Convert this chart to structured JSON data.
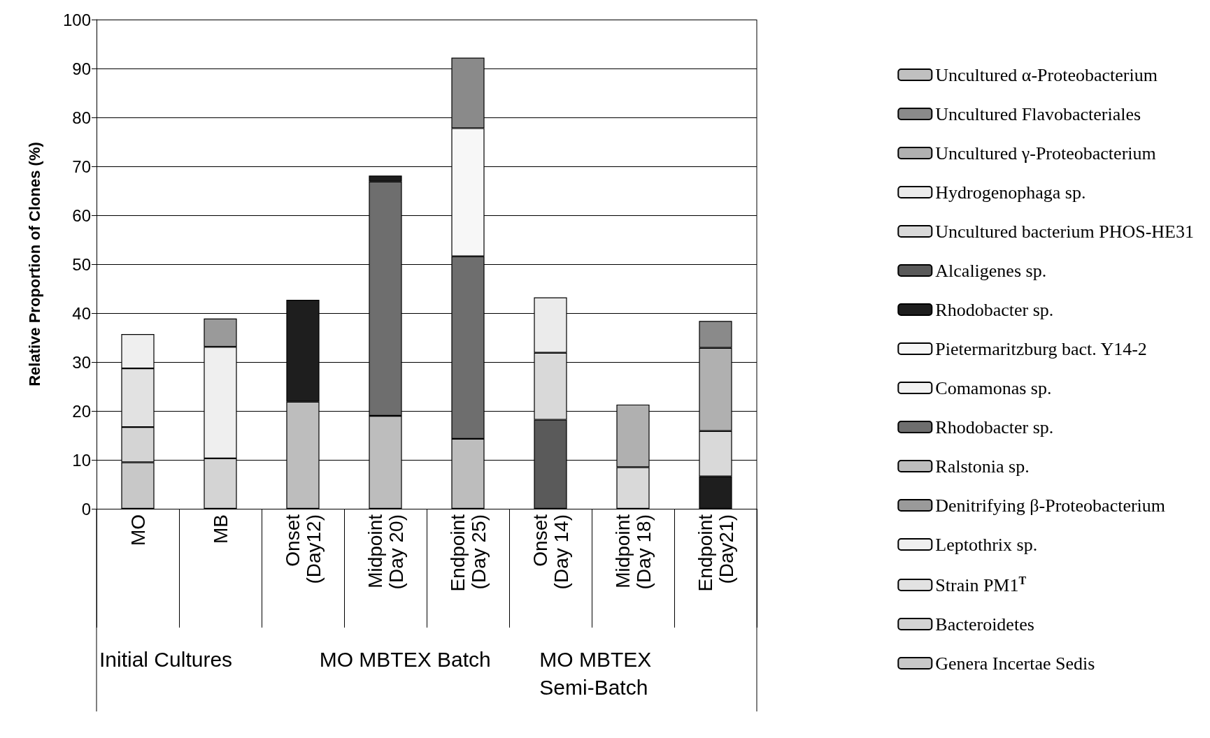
{
  "chart_data": {
    "type": "bar",
    "stacked": true,
    "ylabel": "Relative Proportion of Clones (%)",
    "categories": [
      "MO",
      "MB",
      "Onset (Day12)",
      "Midpoint (Day 20)",
      "Endpoint (Day 25)",
      "Onset (Day 14)",
      "Midpoint (Day 18)",
      "Endpoint (Day21)"
    ],
    "ylim": [
      0,
      100
    ],
    "yticks": [
      0,
      10,
      20,
      30,
      40,
      50,
      60,
      70,
      80,
      90,
      100
    ],
    "grid": "y",
    "legend": "right",
    "annotations": [
      "Initial Cultures",
      "MO MBTEX Batch",
      "MO MBTEX Semi-Batch"
    ],
    "series": [
      {
        "name": "Genera Incertae Sedis",
        "color": "#c8c8c8",
        "values": [
          9.5,
          null,
          null,
          null,
          null,
          null,
          null,
          null
        ]
      },
      {
        "name": "Bacteroidetes",
        "color": "#d4d4d4",
        "values": [
          7.2,
          10.3,
          null,
          null,
          null,
          null,
          null,
          null
        ]
      },
      {
        "name": "Strain PM1$^{T}$",
        "color": "#e2e2e2",
        "values": [
          12.0,
          null,
          null,
          null,
          null,
          null,
          null,
          null
        ]
      },
      {
        "name": "Leptothrix sp.",
        "color": "#efefef",
        "values": [
          7.0,
          22.8,
          null,
          null,
          null,
          null,
          null,
          null
        ]
      },
      {
        "name": "Denitrifying β-Proteobacterium",
        "color": "#9a9a9a",
        "values": [
          null,
          5.8,
          null,
          null,
          null,
          null,
          null,
          null
        ]
      },
      {
        "name": "Ralstonia sp.",
        "color": "#bdbdbd",
        "values": [
          null,
          null,
          21.9,
          19.0,
          14.3,
          null,
          null,
          null
        ]
      },
      {
        "name": "Rhodobacter sp.",
        "color": "#6e6e6e",
        "values": [
          null,
          null,
          null,
          47.9,
          37.3,
          null,
          null,
          null
        ]
      },
      {
        "name": "Comamonas sp.",
        "color": "#f2f2f2",
        "values": [
          null,
          null,
          null,
          null,
          null,
          null,
          null,
          null
        ]
      },
      {
        "name": "Pietermaritzburg bact. Y14-2",
        "color": "#f7f7f7",
        "values": [
          null,
          null,
          null,
          null,
          26.2,
          null,
          null,
          null
        ]
      },
      {
        "name": "Rhodobacter sp.",
        "color": "#1e1e1e",
        "values": [
          null,
          null,
          20.8,
          1.2,
          null,
          null,
          null,
          6.6
        ]
      },
      {
        "name": "Alcaligenes sp.",
        "color": "#5a5a5a",
        "values": [
          null,
          null,
          null,
          null,
          null,
          18.2,
          null,
          null
        ]
      },
      {
        "name": "Uncultured bacterium PHOS-HE31",
        "color": "#d9d9d9",
        "values": [
          null,
          null,
          null,
          null,
          null,
          13.7,
          8.5,
          9.3
        ]
      },
      {
        "name": "Hydrogenophaga sp.",
        "color": "#ebebeb",
        "values": [
          null,
          null,
          null,
          null,
          null,
          11.3,
          null,
          null
        ]
      },
      {
        "name": "Uncultured γ-Proteobacterium",
        "color": "#b0b0b0",
        "values": [
          null,
          null,
          null,
          null,
          null,
          null,
          12.8,
          17.0
        ]
      },
      {
        "name": "Uncultured Flavobacteriales",
        "color": "#8a8a8a",
        "values": [
          null,
          null,
          null,
          null,
          14.4,
          null,
          null,
          5.5
        ]
      },
      {
        "name": "Uncultured α-Proteobacterium",
        "color": "#c0c0c0",
        "values": [
          null,
          null,
          null,
          null,
          null,
          null,
          null,
          null
        ]
      }
    ]
  }
}
